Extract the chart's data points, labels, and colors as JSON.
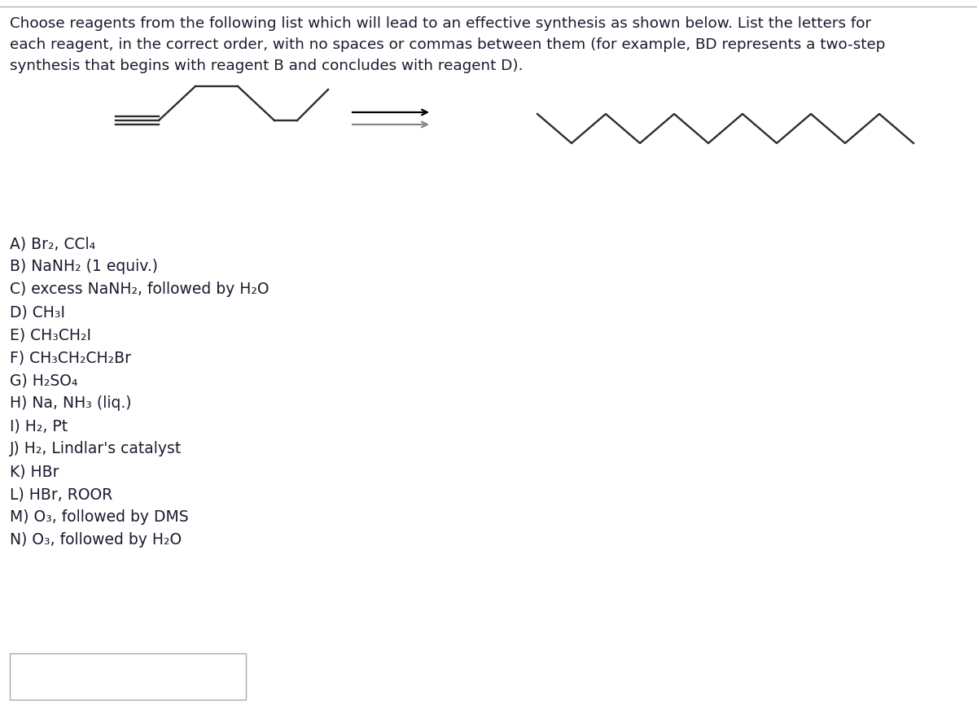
{
  "title_lines": [
    "Choose reagents from the following list which will lead to an effective synthesis as shown below. List the letters for",
    "each reagent, in the correct order, with no spaces or commas between them (for example, BD represents a two-step",
    "synthesis that begins with reagent B and concludes with reagent D)."
  ],
  "reagents": [
    "A) Br₂, CCl₄",
    "B) NaNH₂ (1 equiv.)",
    "C) excess NaNH₂, followed by H₂O",
    "D) CH₃I",
    "E) CH₃CH₂I",
    "F) CH₃CH₂CH₂Br",
    "G) H₂SO₄",
    "H) Na, NH₃ (liq.)",
    "I) H₂, Pt",
    "J) H₂, Lindlar's catalyst",
    "K) HBr",
    "L) HBr, ROOR",
    "M) O₃, followed by DMS",
    "N) O₃, followed by H₂O"
  ],
  "background_color": "#ffffff",
  "text_color": "#1a1a2e",
  "molecule_color": "#2d2d2d",
  "font_size_title": 13.2,
  "font_size_reagents": 13.5,
  "top_border_color": "#b0b0b0",
  "box_border_color": "#aaaaaa",
  "arrow_color_top": "#000000",
  "arrow_color_bot": "#888888"
}
